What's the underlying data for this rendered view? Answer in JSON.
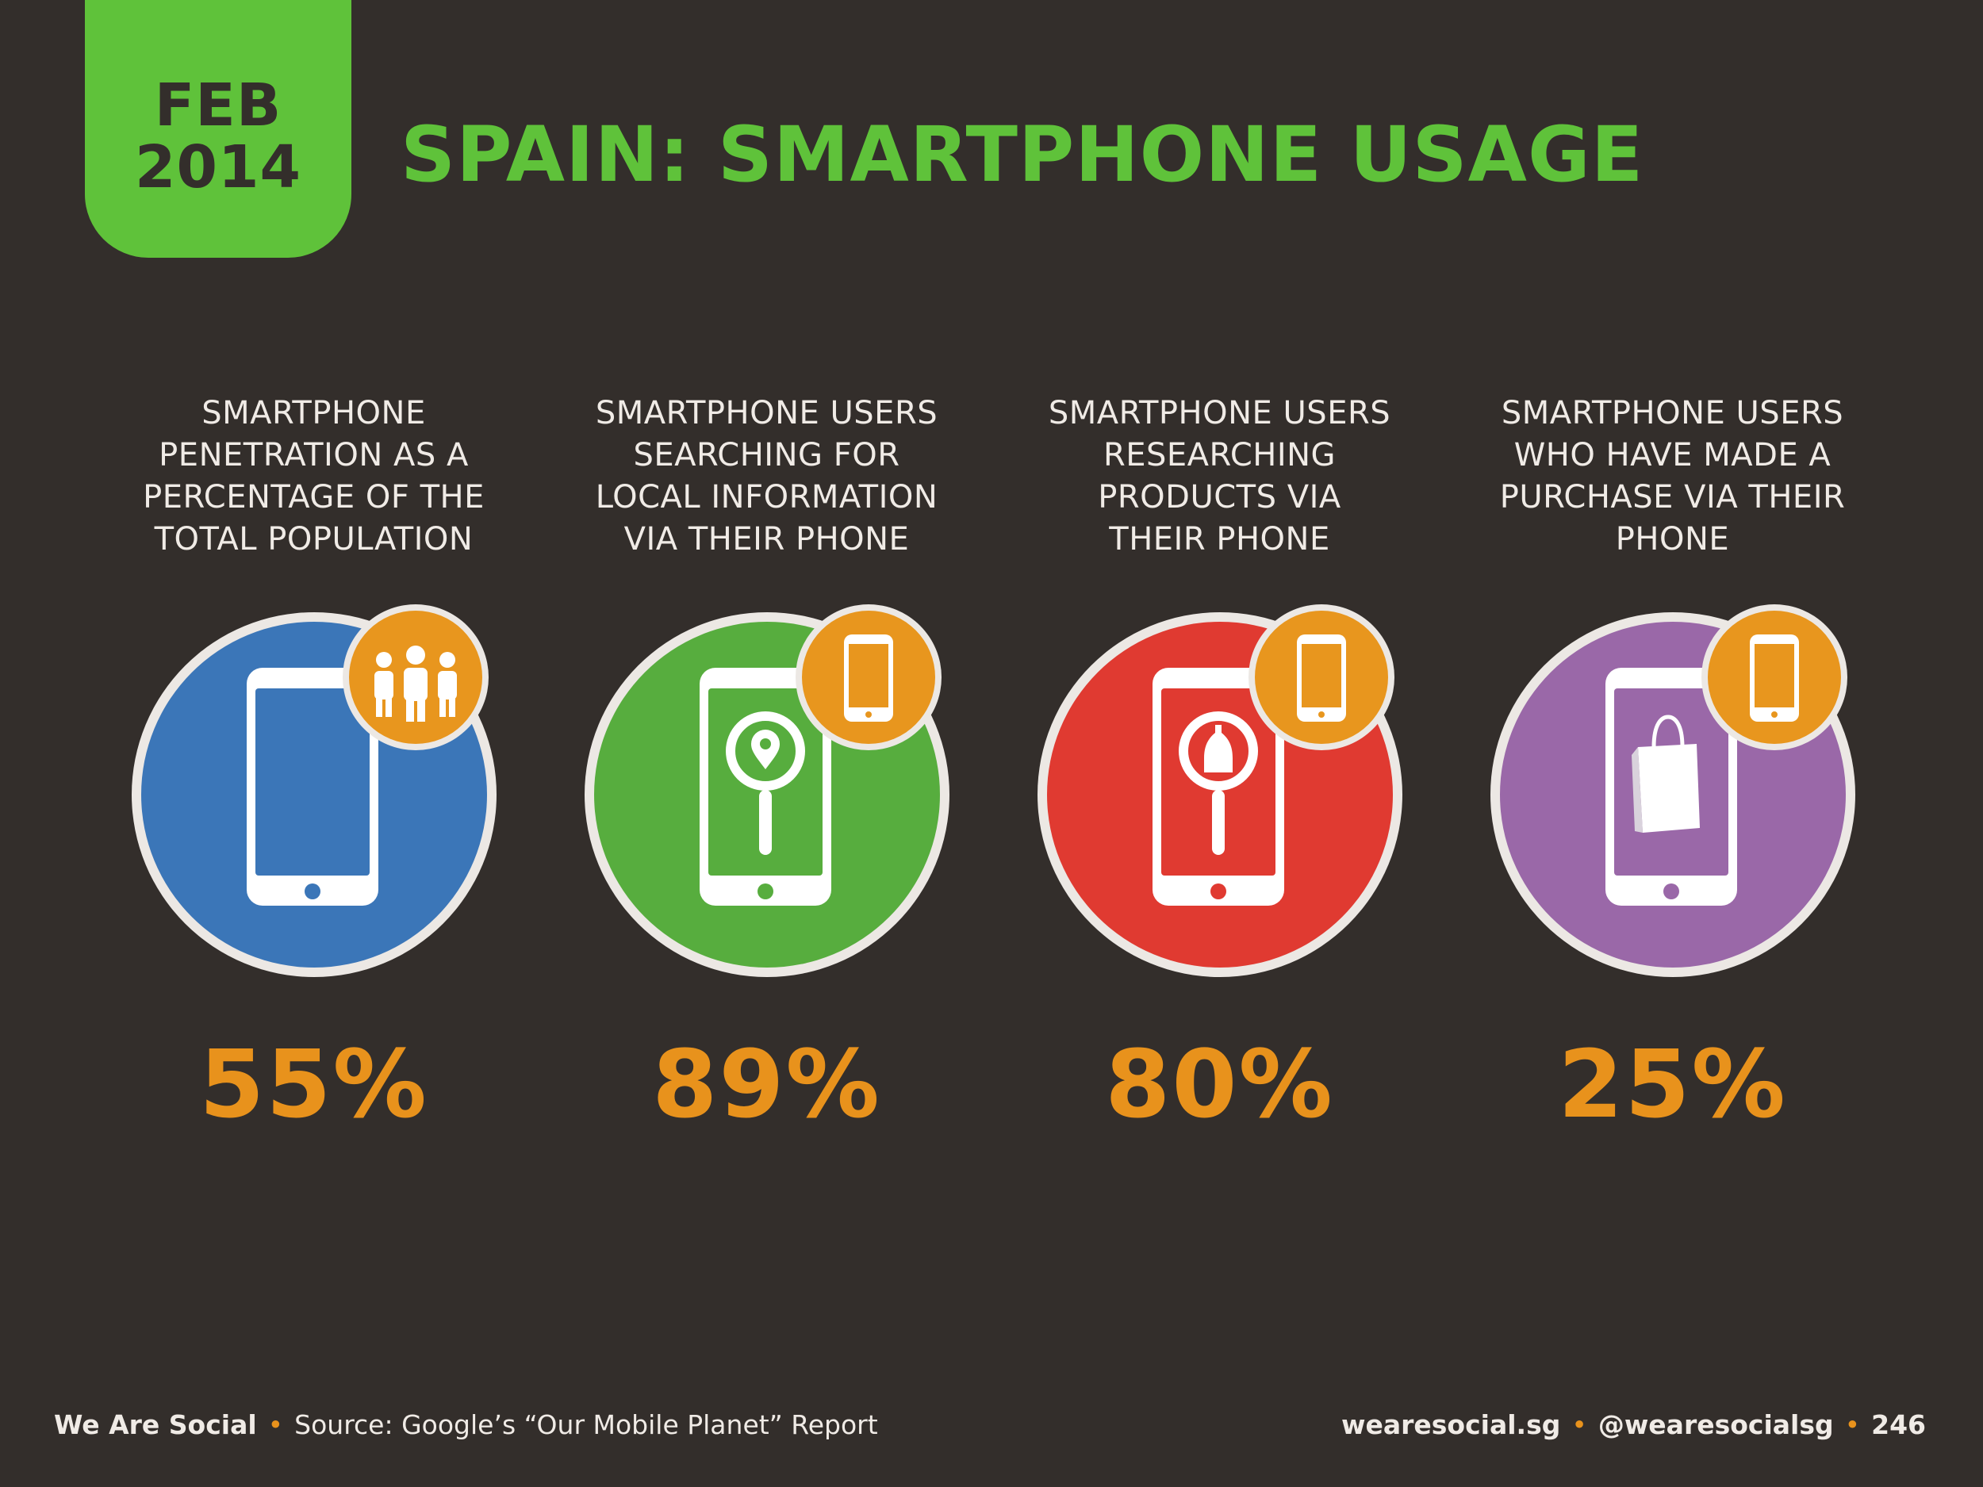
{
  "header": {
    "date_month": "FEB",
    "date_year": "2014",
    "title": "SPAIN: SMARTPHONE USAGE"
  },
  "stats": [
    {
      "label_lines": [
        "SMARTPHONE",
        "PENETRATION AS A",
        "PERCENTAGE OF THE",
        "TOTAL POPULATION"
      ],
      "value": "55%",
      "circle_color": "#3b76b8",
      "screen_icon": "none",
      "badge_icon": "people-icon"
    },
    {
      "label_lines": [
        "SMARTPHONE USERS",
        "SEARCHING FOR",
        "LOCAL INFORMATION",
        "VIA THEIR PHONE"
      ],
      "value": "89%",
      "circle_color": "#57ad3e",
      "screen_icon": "location-search-icon",
      "badge_icon": "phone-icon"
    },
    {
      "label_lines": [
        "SMARTPHONE USERS",
        "RESEARCHING",
        "PRODUCTS VIA",
        "THEIR PHONE"
      ],
      "value": "80%",
      "circle_color": "#e03a31",
      "screen_icon": "product-search-icon",
      "badge_icon": "phone-icon"
    },
    {
      "label_lines": [
        "SMARTPHONE USERS",
        "WHO HAVE MADE A",
        "PURCHASE VIA THEIR",
        "PHONE"
      ],
      "value": "25%",
      "circle_color": "#9a68a8",
      "screen_icon": "shopping-bag-icon",
      "badge_icon": "phone-icon"
    }
  ],
  "footer": {
    "brand": "We Are Social",
    "source": "Source: Google’s “Our Mobile Planet” Report",
    "website": "wearesocial.sg",
    "handle": "@wearesocialsg",
    "page_number": "246"
  },
  "colors": {
    "background": "#332e2b",
    "accent_green": "#5fc23a",
    "accent_orange": "#e8921c",
    "badge_orange": "#e8961e",
    "ring": "#ece8e4"
  }
}
